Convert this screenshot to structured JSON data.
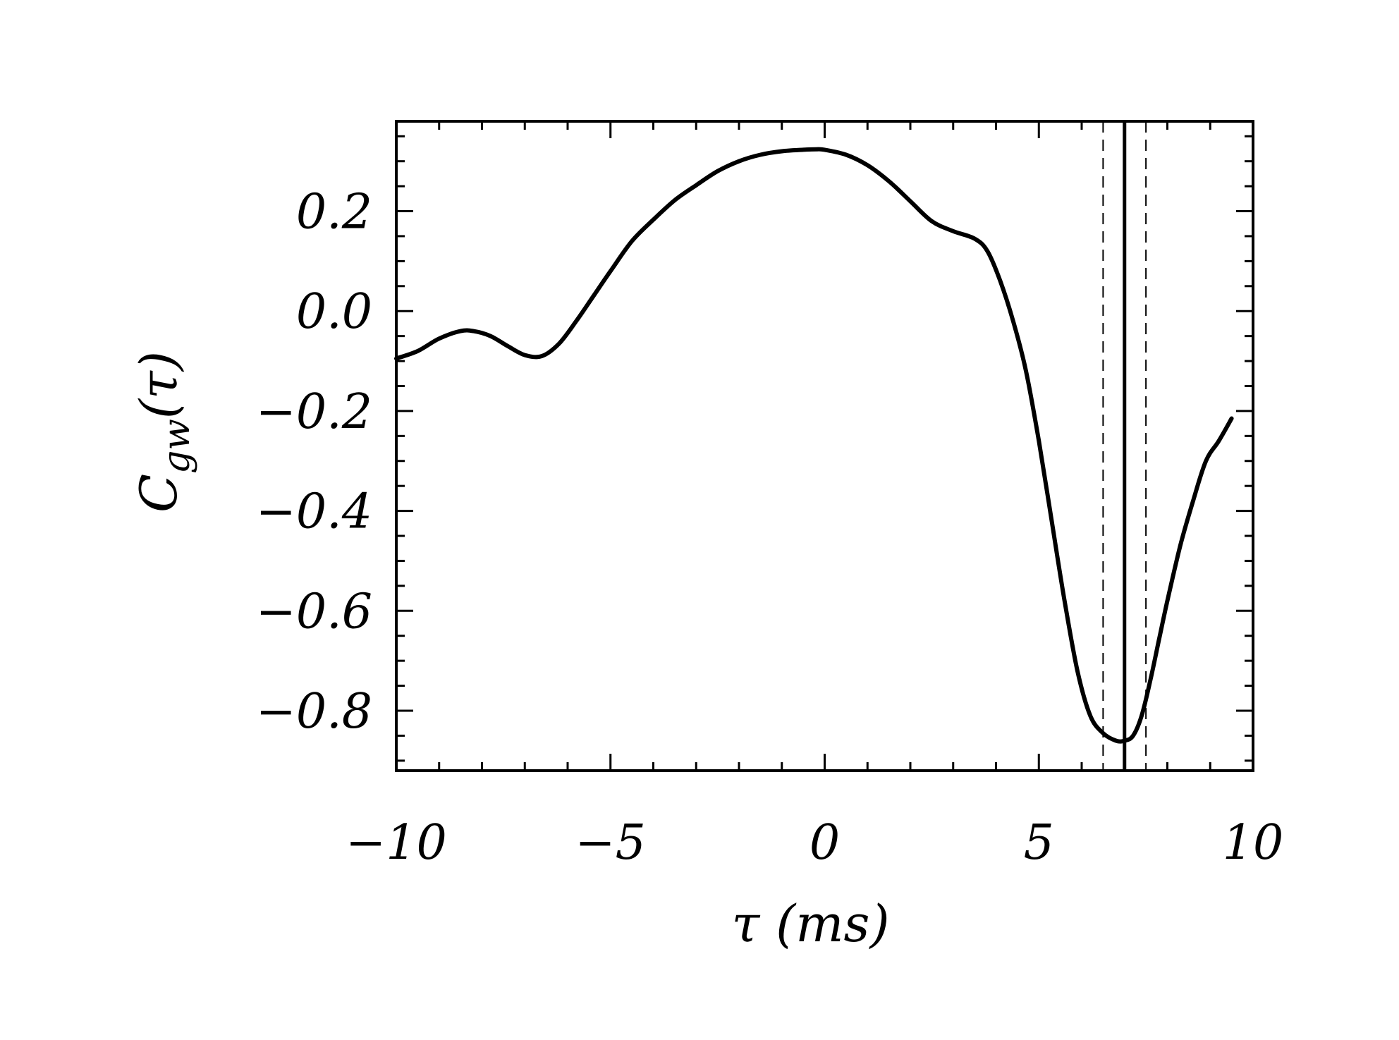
{
  "chart_data": {
    "type": "line",
    "xlabel": "τ  (ms)",
    "ylabel": {
      "base": "C",
      "subscript": "gw",
      "arg": "(τ)"
    },
    "xlim": [
      -10,
      10
    ],
    "ylim": [
      -0.92,
      0.38
    ],
    "x_ticks": [
      -10,
      -5,
      0,
      5,
      10
    ],
    "x_tick_labels": [
      "−10",
      "−5",
      "0",
      "5",
      "10"
    ],
    "y_ticks": [
      -0.8,
      -0.6,
      -0.4,
      -0.2,
      0.0,
      0.2
    ],
    "y_tick_labels": [
      "−0.8",
      "−0.6",
      "−0.4",
      "−0.2",
      "0.0",
      "0.2"
    ],
    "grid": false,
    "series": [
      {
        "x": [
          -10.0,
          -9.5,
          -9.0,
          -8.5,
          -8.2,
          -7.8,
          -7.4,
          -7.0,
          -6.6,
          -6.2,
          -5.8,
          -5.4,
          -5.0,
          -4.5,
          -4.0,
          -3.5,
          -3.0,
          -2.5,
          -2.0,
          -1.5,
          -1.0,
          -0.5,
          -0.2,
          0.0,
          0.5,
          1.0,
          1.5,
          2.0,
          2.5,
          3.0,
          3.5,
          3.8,
          4.1,
          4.4,
          4.7,
          5.0,
          5.3,
          5.6,
          5.9,
          6.2,
          6.5,
          6.8,
          7.0,
          7.2,
          7.4,
          7.6,
          7.8,
          8.0,
          8.3,
          8.6,
          8.9,
          9.2,
          9.5
        ],
        "y": [
          -0.095,
          -0.08,
          -0.055,
          -0.04,
          -0.04,
          -0.05,
          -0.07,
          -0.088,
          -0.09,
          -0.065,
          -0.02,
          0.03,
          0.08,
          0.14,
          0.183,
          0.222,
          0.252,
          0.28,
          0.3,
          0.313,
          0.32,
          0.323,
          0.324,
          0.323,
          0.313,
          0.292,
          0.26,
          0.22,
          0.18,
          0.16,
          0.145,
          0.12,
          0.06,
          -0.02,
          -0.12,
          -0.26,
          -0.42,
          -0.58,
          -0.72,
          -0.81,
          -0.845,
          -0.86,
          -0.86,
          -0.85,
          -0.81,
          -0.74,
          -0.66,
          -0.58,
          -0.47,
          -0.38,
          -0.3,
          -0.26,
          -0.215
        ]
      }
    ],
    "reference_lines": [
      {
        "x": 7.0,
        "style": "solid"
      },
      {
        "x": 6.5,
        "style": "dashed"
      },
      {
        "x": 7.5,
        "style": "dashed"
      }
    ]
  }
}
